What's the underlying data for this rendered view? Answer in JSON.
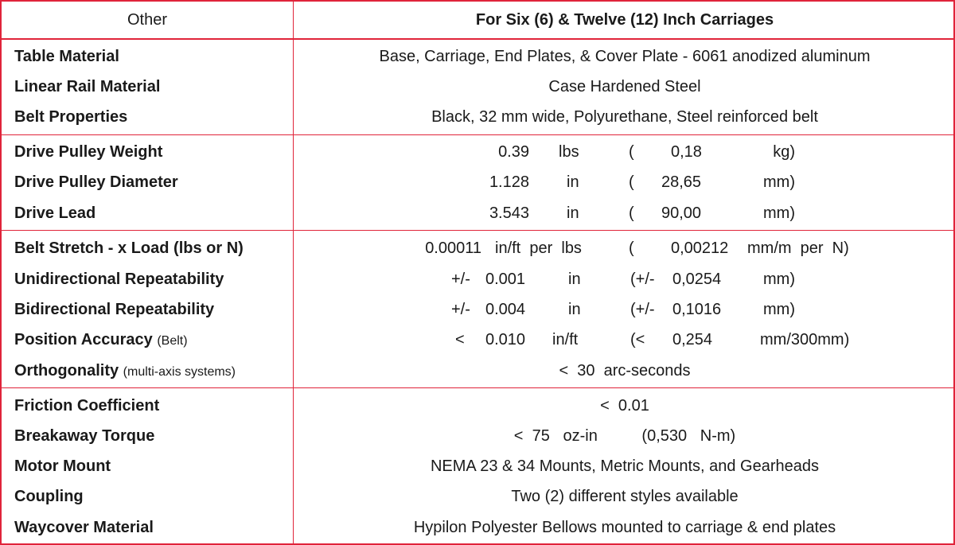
{
  "header": {
    "left": "Other",
    "right": "For Six (6) & Twelve (12) Inch Carriages"
  },
  "rows": {
    "table_material": {
      "label": "Table Material",
      "value": "Base, Carriage, End Plates, & Cover Plate - 6061 anodized aluminum"
    },
    "rail_material": {
      "label": "Linear Rail Material",
      "value": "Case Hardened Steel"
    },
    "belt_properties": {
      "label": "Belt Properties",
      "value": "Black, 32 mm wide, Polyurethane, Steel reinforced belt"
    },
    "pulley_weight": {
      "label": "Drive Pulley Weight",
      "imperial": "0.39",
      "imperial_unit": "lbs",
      "open": "(",
      "metric": "0,18",
      "metric_unit": "kg)"
    },
    "pulley_diameter": {
      "label": "Drive Pulley Diameter",
      "imperial": "1.128",
      "imperial_unit": "in",
      "open": "(",
      "metric": "28,65",
      "metric_unit": "mm)"
    },
    "drive_lead": {
      "label": "Drive Lead",
      "imperial": "3.543",
      "imperial_unit": "in",
      "open": "(",
      "metric": "90,00",
      "metric_unit": "mm)"
    },
    "belt_stretch": {
      "label": "Belt Stretch - x Load (lbs or N)",
      "imperial": "0.00011",
      "imperial_unit": "in/ft  per  lbs",
      "open": "(",
      "metric": "0,00212",
      "metric_unit": "mm/m  per  N)"
    },
    "uni_repeat": {
      "label": "Unidirectional Repeatability",
      "prefix": "+/-",
      "imperial": "0.001",
      "imperial_unit": "in",
      "open": "(+/-",
      "metric": "0,0254",
      "metric_unit": "mm)"
    },
    "bi_repeat": {
      "label": "Bidirectional Repeatability",
      "prefix": "+/-",
      "imperial": "0.004",
      "imperial_unit": "in",
      "open": "(+/-",
      "metric": "0,1016",
      "metric_unit": "mm)"
    },
    "position_accuracy": {
      "label": "Position Accuracy",
      "note": "(Belt)",
      "prefix": "<",
      "imperial": "0.010",
      "imperial_unit": "in/ft",
      "open": "(<",
      "metric": "0,254",
      "metric_unit": "mm/300mm)"
    },
    "orthogonality": {
      "label": "Orthogonality",
      "note": "(multi-axis systems)",
      "value": "<  30  arc-seconds"
    },
    "friction": {
      "label": "Friction Coefficient",
      "value": "<  0.01"
    },
    "breakaway": {
      "label": "Breakaway Torque",
      "value": "<  75   oz-in          (0,530   N-m)"
    },
    "motor_mount": {
      "label": "Motor Mount",
      "value": "NEMA 23 & 34 Mounts, Metric Mounts, and Gearheads"
    },
    "coupling": {
      "label": "Coupling",
      "value": "Two (2) different styles available"
    },
    "waycover": {
      "label": "Waycover Material",
      "value": "Hypilon Polyester Bellows mounted to carriage & end plates"
    }
  }
}
